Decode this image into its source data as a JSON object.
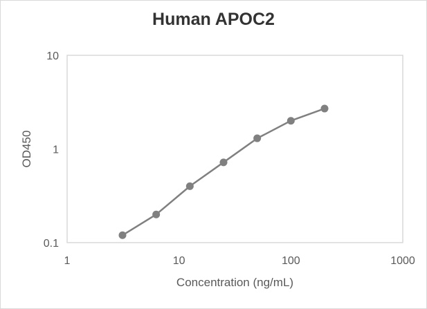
{
  "chart_data": {
    "type": "line",
    "title": "Human APOC2",
    "xlabel": "Concentration (ng/mL)",
    "ylabel": "OD450",
    "xscale": "log",
    "yscale": "log",
    "xlim": [
      1,
      1000
    ],
    "ylim": [
      0.1,
      10
    ],
    "x_ticks": [
      "1",
      "10",
      "100",
      "1000"
    ],
    "y_ticks": [
      "0.1",
      "1",
      "10"
    ],
    "grid": false,
    "legend": null,
    "series": [
      {
        "name": "Human APOC2",
        "color": "#808080",
        "marker": "circle",
        "x": [
          3.125,
          6.25,
          12.5,
          25,
          50,
          100,
          200
        ],
        "y": [
          0.12,
          0.2,
          0.4,
          0.72,
          1.3,
          2.0,
          2.7
        ]
      }
    ]
  }
}
